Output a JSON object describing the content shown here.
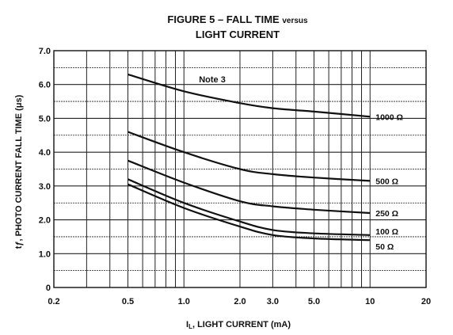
{
  "chart_data": {
    "type": "line",
    "title_line1": "FIGURE 5 – FALL TIME",
    "title_line1_suffix": "versus",
    "title_line2": "LIGHT CURRENT",
    "xlabel_prefix": "I",
    "xlabel_sub": "L",
    "xlabel_rest": ", LIGHT CURRENT (mA)",
    "ylabel": "tƒ, PHOTO CURRENT FALL TIME (μs)",
    "x_scale": "log",
    "xlim": [
      0.2,
      20
    ],
    "ylim": [
      0,
      7.0
    ],
    "x_ticks": [
      "0.2",
      "0.5",
      "1.0",
      "2.0",
      "3.0",
      "5.0",
      "10",
      "20"
    ],
    "y_ticks": [
      "0",
      "1.0",
      "2.0",
      "3.0",
      "4.0",
      "5.0",
      "6.0",
      "7.0"
    ],
    "grid": true,
    "annotation": "Note 3",
    "series": [
      {
        "name": "1000 Ω",
        "x": [
          0.5,
          1.0,
          2.0,
          3.0,
          5.0,
          10
        ],
        "y": [
          6.3,
          5.8,
          5.45,
          5.3,
          5.2,
          5.05
        ]
      },
      {
        "name": "500 Ω",
        "x": [
          0.5,
          1.0,
          2.0,
          3.0,
          5.0,
          10
        ],
        "y": [
          4.6,
          4.0,
          3.5,
          3.35,
          3.25,
          3.15
        ]
      },
      {
        "name": "250 Ω",
        "x": [
          0.5,
          1.0,
          2.0,
          3.0,
          5.0,
          10
        ],
        "y": [
          3.75,
          3.1,
          2.55,
          2.4,
          2.3,
          2.2
        ]
      },
      {
        "name": "100 Ω",
        "x": [
          0.5,
          1.0,
          2.0,
          3.0,
          5.0,
          10
        ],
        "y": [
          3.2,
          2.5,
          1.95,
          1.7,
          1.6,
          1.55
        ]
      },
      {
        "name": "50 Ω",
        "x": [
          0.5,
          1.0,
          2.0,
          3.0,
          5.0,
          10
        ],
        "y": [
          3.05,
          2.35,
          1.8,
          1.55,
          1.45,
          1.4
        ]
      }
    ]
  }
}
